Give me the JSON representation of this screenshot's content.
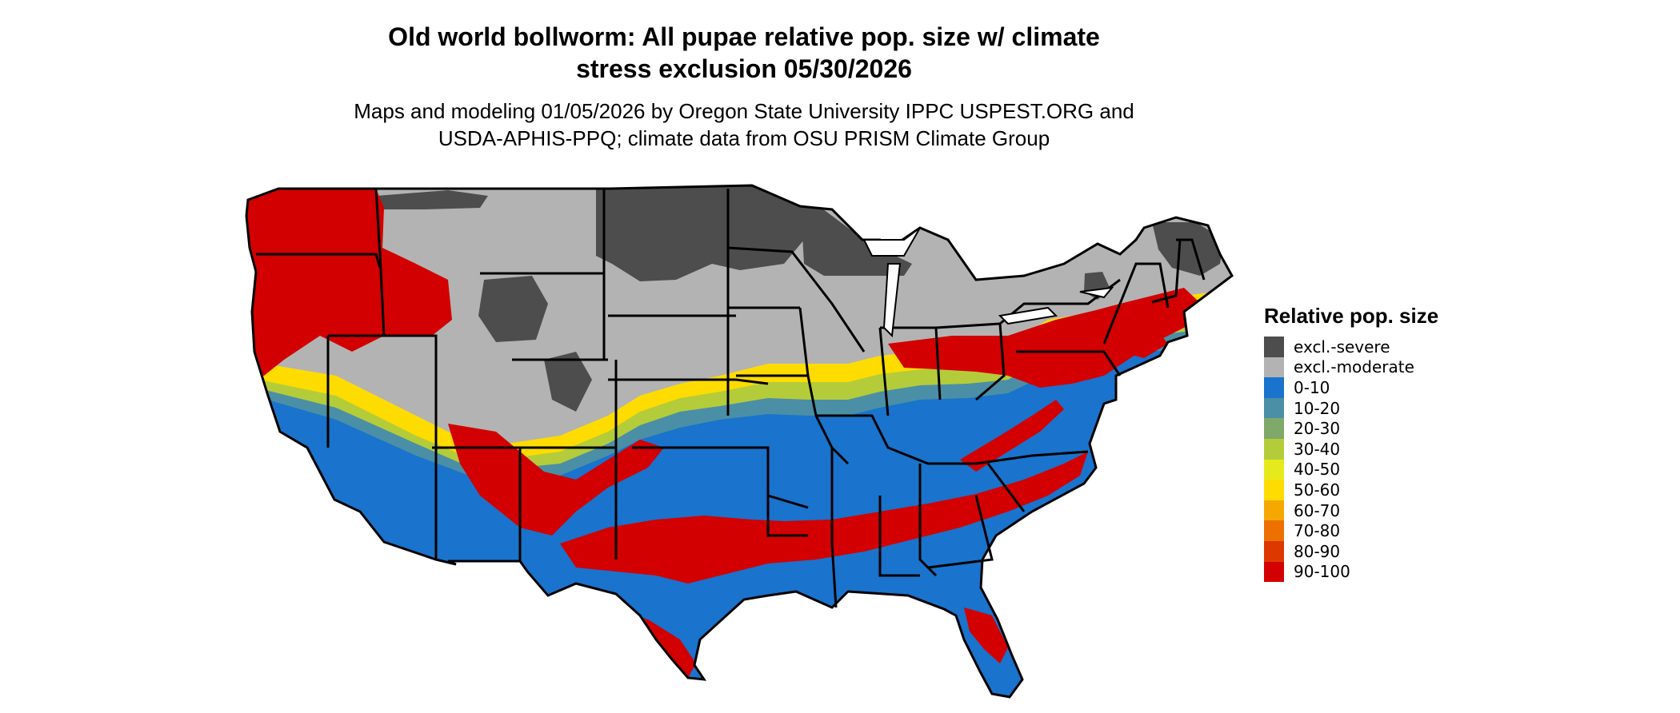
{
  "title": {
    "line1": "Old world bollworm: All pupae relative pop. size w/ climate",
    "line2": "stress exclusion 05/30/2026"
  },
  "subtitle": {
    "line1": "Maps and modeling 01/05/2026 by Oregon State University IPPC USPEST.ORG and",
    "line2": "USDA-APHIS-PPQ; climate data from OSU PRISM Climate Group"
  },
  "legend": {
    "title": "Relative pop. size",
    "items": [
      {
        "label": "excl.-severe",
        "color": "#4d4d4d"
      },
      {
        "label": "excl.-moderate",
        "color": "#b3b3b3"
      },
      {
        "label": "0-10",
        "color": "#1a73cc"
      },
      {
        "label": "10-20",
        "color": "#4a8fa6"
      },
      {
        "label": "20-30",
        "color": "#7fa86a"
      },
      {
        "label": "30-40",
        "color": "#b4cc3a"
      },
      {
        "label": "40-50",
        "color": "#e6ea1c"
      },
      {
        "label": "50-60",
        "color": "#ffdc00"
      },
      {
        "label": "60-70",
        "color": "#f5a800"
      },
      {
        "label": "70-80",
        "color": "#ee7000"
      },
      {
        "label": "80-90",
        "color": "#dd3800"
      },
      {
        "label": "90-100",
        "color": "#d20000"
      }
    ]
  }
}
